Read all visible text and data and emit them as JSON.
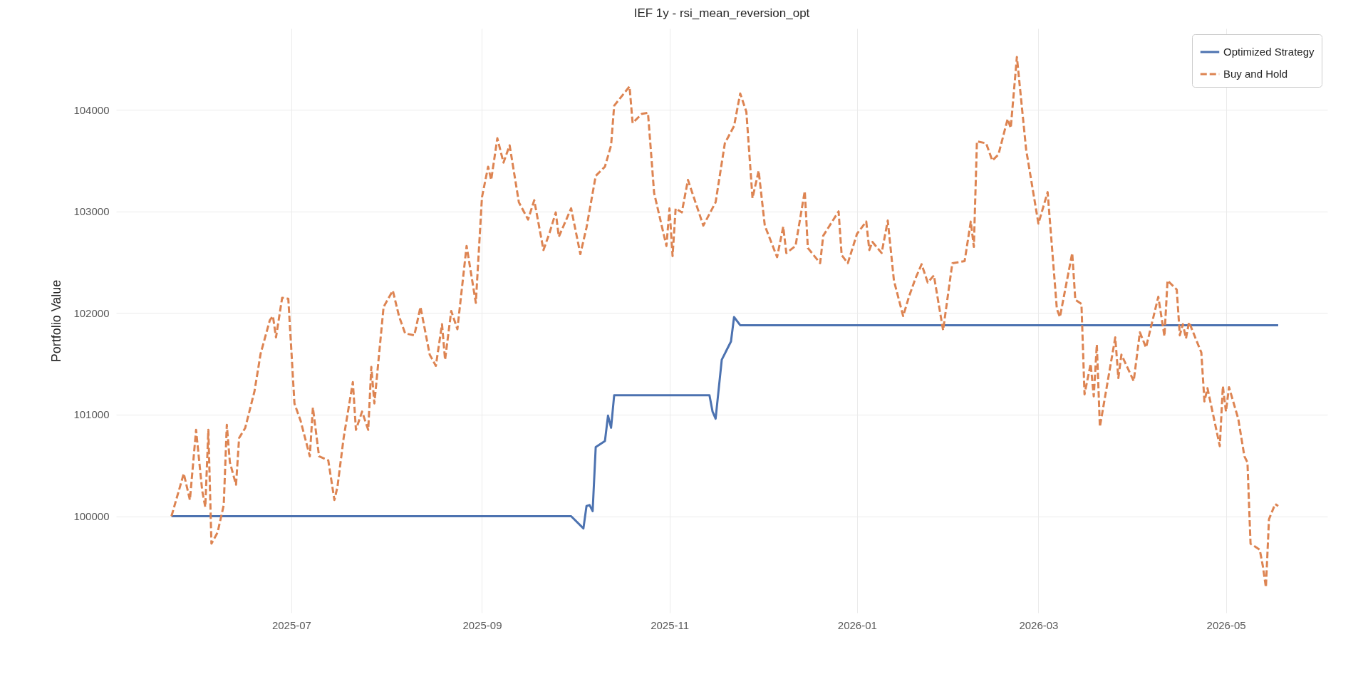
{
  "chart_data": {
    "type": "line",
    "title": "IEF 1y - rsi_mean_reversion_opt",
    "ylabel": "Portfolio Value",
    "xlim": [
      "2025-05-05",
      "2026-06-03"
    ],
    "xticks": [
      "2025-07",
      "2025-09",
      "2025-11",
      "2026-01",
      "2026-03",
      "2026-05"
    ],
    "ylim": [
      99050,
      104800
    ],
    "yticks": [
      100000,
      101000,
      102000,
      103000,
      104000
    ],
    "grid": true,
    "legend": "top right",
    "series": [
      {
        "name": "Optimized Strategy",
        "color": "#4c72b0",
        "line_style": "solid",
        "x": [
          "2025-05-23",
          "2025-09-30",
          "2025-10-04",
          "2025-10-05",
          "2025-10-06",
          "2025-10-07",
          "2025-10-08",
          "2025-10-11",
          "2025-10-12",
          "2025-10-13",
          "2025-10-14",
          "2025-11-14",
          "2025-11-15",
          "2025-11-16",
          "2025-11-18",
          "2025-11-21",
          "2025-11-22",
          "2025-11-24",
          "2026-05-18"
        ],
        "values": [
          100000,
          100000,
          99880,
          100100,
          100110,
          100050,
          100680,
          100740,
          100990,
          100870,
          101190,
          101190,
          101030,
          100960,
          101540,
          101720,
          101960,
          101880,
          101880
        ]
      },
      {
        "name": "Buy and Hold",
        "color": "#dd8452",
        "line_style": "dashed",
        "x": [
          "2025-05-23",
          "2025-05-27",
          "2025-05-29",
          "2025-05-31",
          "2025-06-02",
          "2025-06-03",
          "2025-06-04",
          "2025-06-05",
          "2025-06-07",
          "2025-06-09",
          "2025-06-10",
          "2025-06-11",
          "2025-06-13",
          "2025-06-14",
          "2025-06-16",
          "2025-06-19",
          "2025-06-21",
          "2025-06-24",
          "2025-06-25",
          "2025-06-26",
          "2025-06-28",
          "2025-06-30",
          "2025-07-01",
          "2025-07-02",
          "2025-07-04",
          "2025-07-07",
          "2025-07-08",
          "2025-07-10",
          "2025-07-13",
          "2025-07-15",
          "2025-07-16",
          "2025-07-18",
          "2025-07-21",
          "2025-07-22",
          "2025-07-24",
          "2025-07-26",
          "2025-07-27",
          "2025-07-28",
          "2025-07-31",
          "2025-08-03",
          "2025-08-05",
          "2025-08-07",
          "2025-08-10",
          "2025-08-12",
          "2025-08-15",
          "2025-08-17",
          "2025-08-19",
          "2025-08-20",
          "2025-08-22",
          "2025-08-24",
          "2025-08-27",
          "2025-08-30",
          "2025-09-01",
          "2025-09-03",
          "2025-09-04",
          "2025-09-06",
          "2025-09-08",
          "2025-09-10",
          "2025-09-13",
          "2025-09-16",
          "2025-09-18",
          "2025-09-21",
          "2025-09-23",
          "2025-09-25",
          "2025-09-26",
          "2025-09-30",
          "2025-10-03",
          "2025-10-05",
          "2025-10-08",
          "2025-10-11",
          "2025-10-13",
          "2025-10-14",
          "2025-10-19",
          "2025-10-20",
          "2025-10-23",
          "2025-10-25",
          "2025-10-27",
          "2025-10-31",
          "2025-11-01",
          "2025-11-02",
          "2025-11-03",
          "2025-11-05",
          "2025-11-07",
          "2025-11-12",
          "2025-11-16",
          "2025-11-19",
          "2025-11-22",
          "2025-11-24",
          "2025-11-26",
          "2025-11-28",
          "2025-11-30",
          "2025-12-02",
          "2025-12-06",
          "2025-12-08",
          "2025-12-09",
          "2025-12-12",
          "2025-12-15",
          "2025-12-16",
          "2025-12-20",
          "2025-12-21",
          "2025-12-26",
          "2025-12-27",
          "2025-12-29",
          "2026-01-01",
          "2026-01-04",
          "2026-01-05",
          "2026-01-06",
          "2026-01-09",
          "2026-01-11",
          "2026-01-13",
          "2026-01-16",
          "2026-01-18",
          "2026-01-20",
          "2026-01-22",
          "2026-01-24",
          "2026-01-26",
          "2026-01-29",
          "2026-02-01",
          "2026-02-05",
          "2026-02-07",
          "2026-02-08",
          "2026-02-09",
          "2026-02-12",
          "2026-02-14",
          "2026-02-16",
          "2026-02-19",
          "2026-02-20",
          "2026-02-22",
          "2026-02-25",
          "2026-03-01",
          "2026-03-04",
          "2026-03-07",
          "2026-03-08",
          "2026-03-12",
          "2026-03-13",
          "2026-03-15",
          "2026-03-16",
          "2026-03-18",
          "2026-03-19",
          "2026-03-20",
          "2026-03-21",
          "2026-03-26",
          "2026-03-27",
          "2026-03-28",
          "2026-04-01",
          "2026-04-03",
          "2026-04-05",
          "2026-04-09",
          "2026-04-11",
          "2026-04-12",
          "2026-04-15",
          "2026-04-16",
          "2026-04-17",
          "2026-04-18",
          "2026-04-19",
          "2026-04-23",
          "2026-04-24",
          "2026-04-25",
          "2026-04-29",
          "2026-04-30",
          "2026-05-01",
          "2026-05-02",
          "2026-05-05",
          "2026-05-07",
          "2026-05-08",
          "2026-05-09",
          "2026-05-12",
          "2026-05-13",
          "2026-05-14",
          "2026-05-15",
          "2026-05-17",
          "2026-05-18"
        ],
        "values": [
          100000,
          100420,
          100160,
          100850,
          100250,
          100090,
          100850,
          99730,
          99840,
          100110,
          100900,
          100530,
          100310,
          100770,
          100870,
          101230,
          101600,
          101930,
          101970,
          101760,
          102150,
          102140,
          101630,
          101110,
          100940,
          100590,
          101070,
          100590,
          100550,
          100160,
          100290,
          100770,
          101320,
          100850,
          101030,
          100850,
          101470,
          101110,
          102060,
          102220,
          101970,
          101800,
          101780,
          102060,
          101590,
          101480,
          101890,
          101540,
          102020,
          101840,
          102660,
          102100,
          103140,
          103440,
          103310,
          103720,
          103480,
          103650,
          103090,
          102920,
          103110,
          102620,
          102790,
          102990,
          102750,
          103030,
          102580,
          102840,
          103350,
          103440,
          103650,
          104040,
          104230,
          103870,
          103960,
          103970,
          103180,
          102660,
          103030,
          102560,
          103030,
          102990,
          103310,
          102860,
          103090,
          103670,
          103840,
          104160,
          103980,
          103130,
          103400,
          102860,
          102550,
          102850,
          102590,
          102660,
          103200,
          102640,
          102490,
          102760,
          103000,
          102570,
          102490,
          102780,
          102900,
          102620,
          102700,
          102590,
          102910,
          102320,
          101970,
          102170,
          102340,
          102480,
          102300,
          102370,
          101830,
          102490,
          102510,
          102900,
          102650,
          103690,
          103670,
          103500,
          103560,
          103910,
          103820,
          104520,
          103610,
          102880,
          103190,
          102040,
          101960,
          102590,
          102130,
          102090,
          101200,
          101500,
          101180,
          101690,
          100880,
          101760,
          101360,
          101590,
          101330,
          101810,
          101660,
          102160,
          101770,
          102320,
          102230,
          101780,
          101890,
          101750,
          101910,
          101610,
          101130,
          101260,
          100690,
          101280,
          101030,
          101270,
          100960,
          100590,
          100530,
          99730,
          99670,
          99510,
          99300,
          99970,
          100120,
          100100
        ]
      }
    ]
  }
}
